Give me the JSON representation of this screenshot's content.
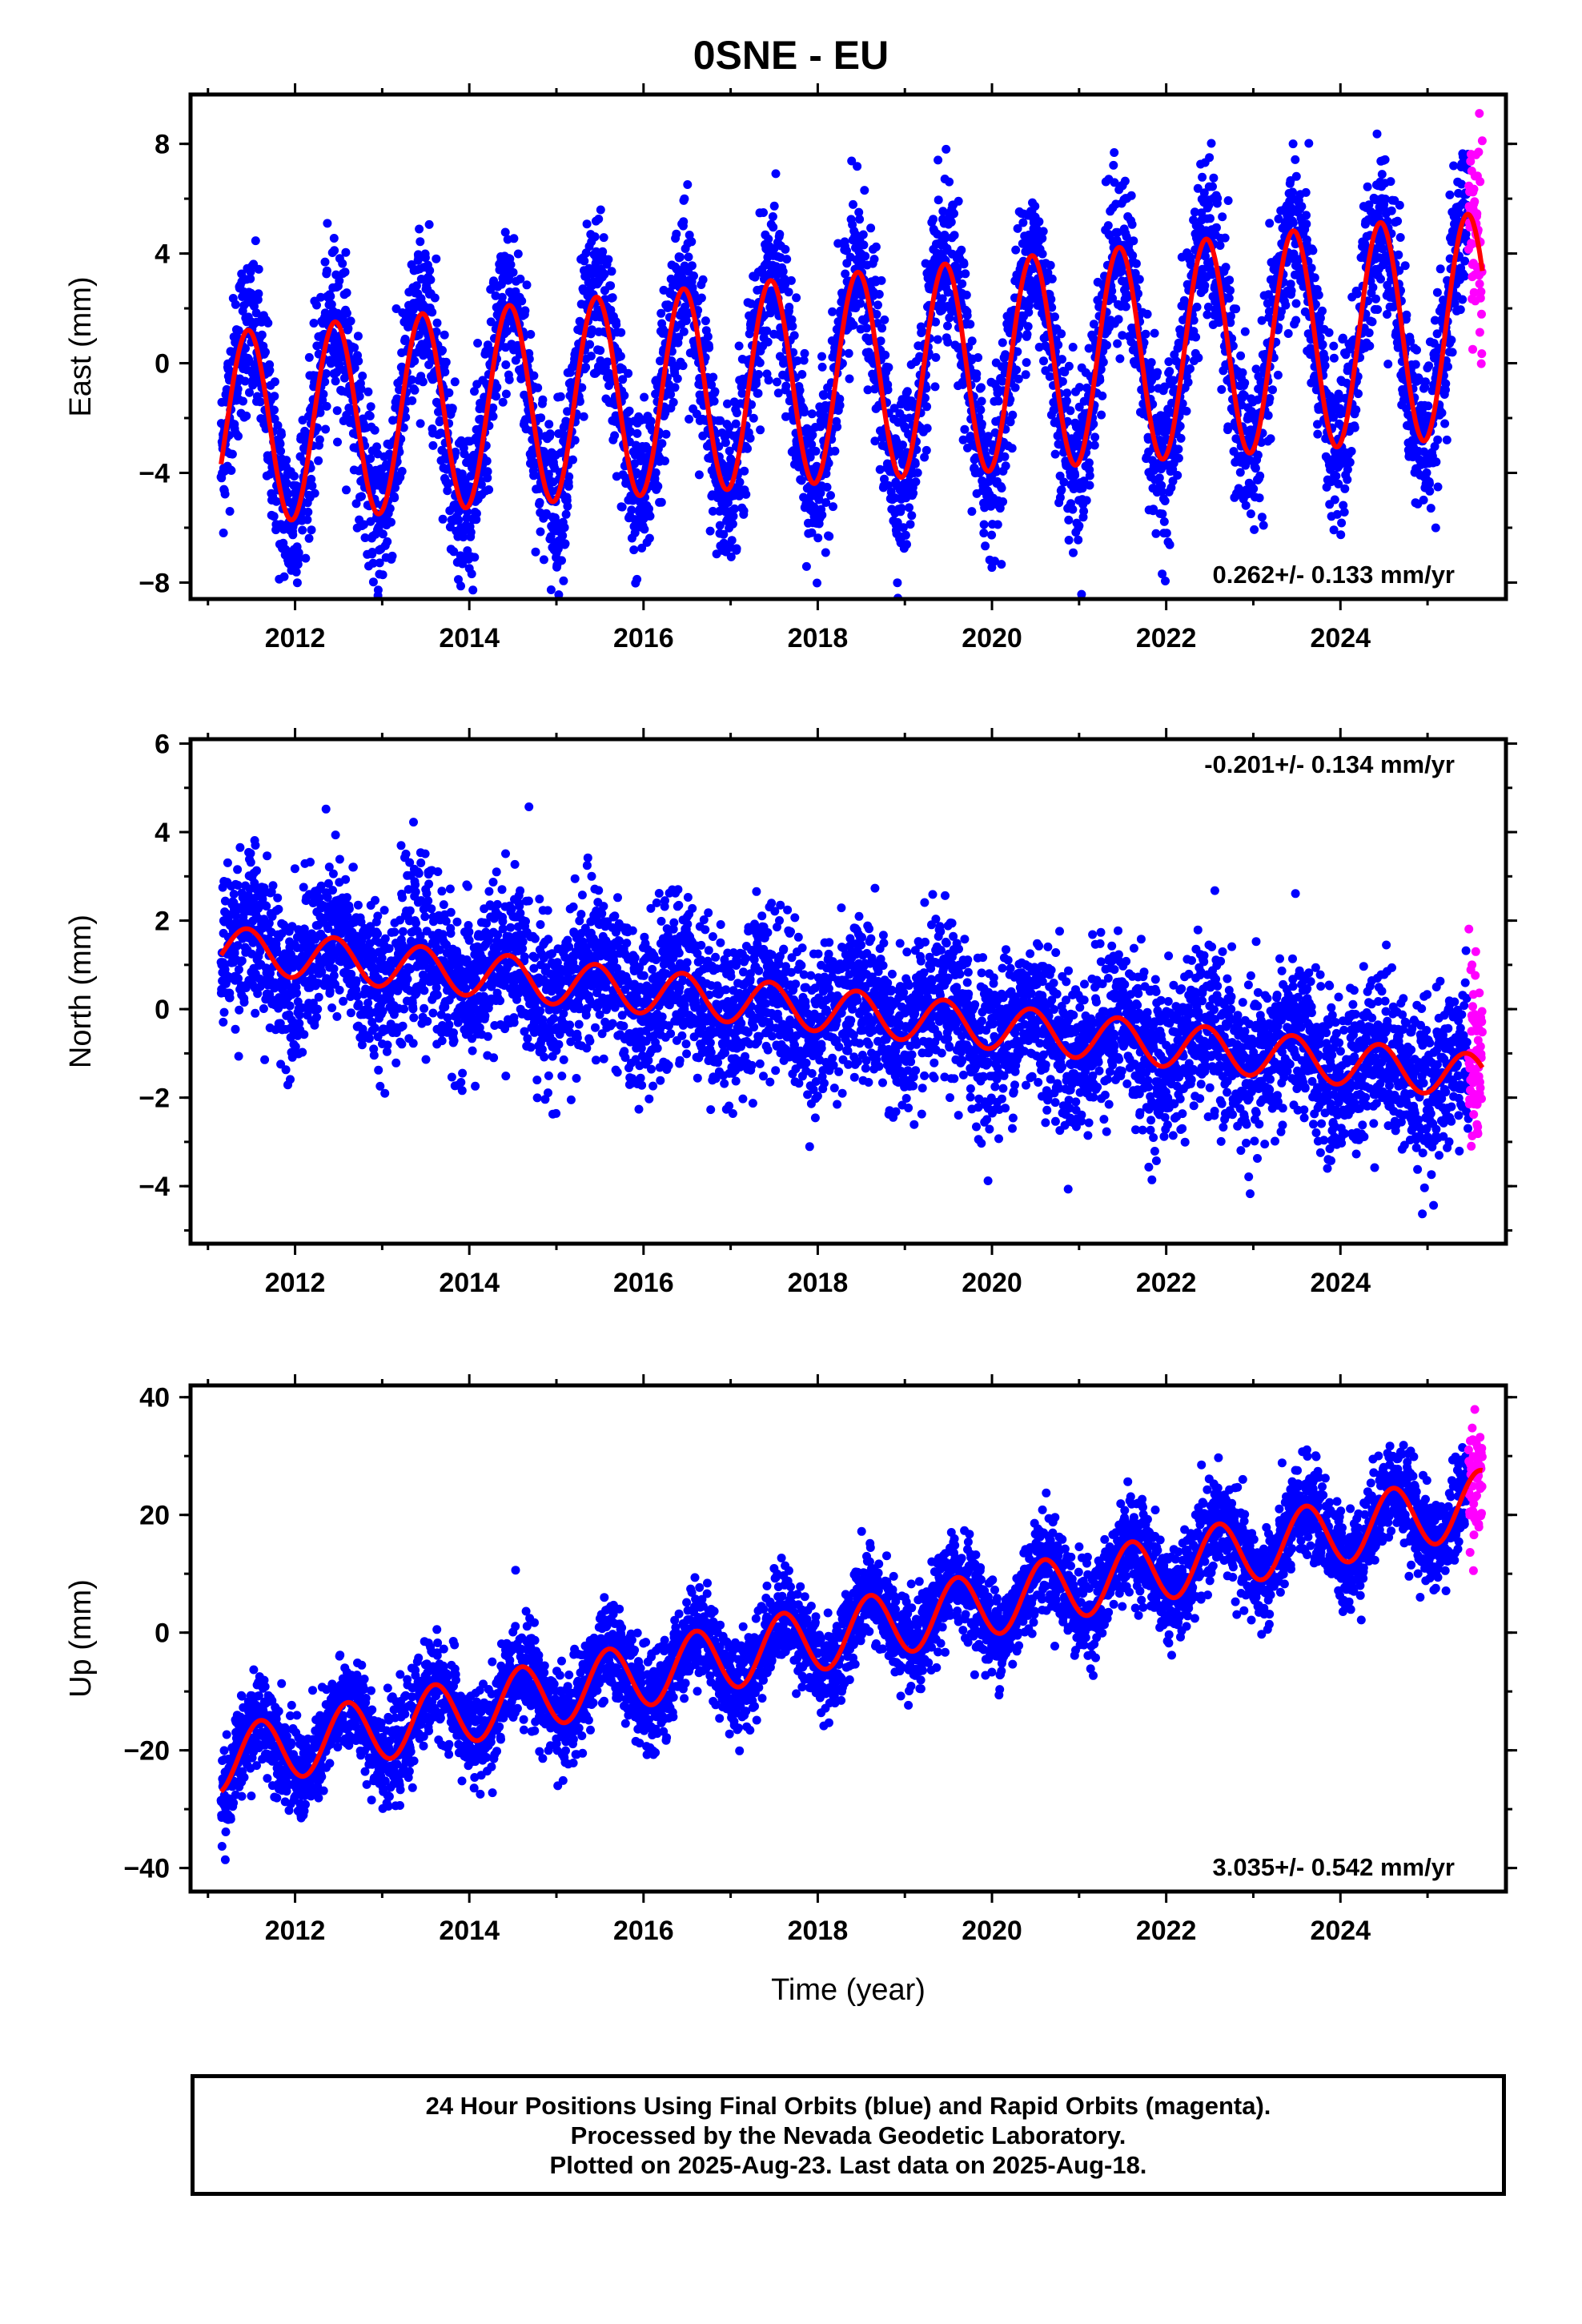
{
  "title": "0SNE - EU",
  "colors": {
    "final": "#0000ff",
    "rapid": "#ff00ff",
    "model": "#ff0000"
  },
  "footer": {
    "line1": "24 Hour Positions Using Final Orbits (blue) and Rapid Orbits (magenta).",
    "line2": "Processed by the Nevada Geodetic Laboratory.",
    "line3": "Plotted on 2025-Aug-23. Last data on 2025-Aug-18."
  },
  "chart_data": [
    {
      "type": "scatter",
      "ylabel": "East (mm)",
      "xlabel": "",
      "xlim": [
        2010.8,
        2025.9
      ],
      "ylim": [
        -8.6,
        9.8
      ],
      "xticks": [
        2012,
        2014,
        2016,
        2018,
        2020,
        2022,
        2024
      ],
      "yticks": [
        -8,
        -4,
        0,
        4,
        8
      ],
      "rate_text": "0.262+/- 0.133 mm/yr",
      "rate_position": "bottom-right",
      "model": {
        "offset_at_2018": -0.6,
        "trend_mm_per_yr": 0.262,
        "annual_amplitude_mm": 3.5,
        "annual_peak_phase": 0.46,
        "annual_amplitude_growth_per_yr": 0.04
      },
      "scatter_mm": 1.5,
      "data_start": 2011.15,
      "rapid_start": 2025.47,
      "data_end": 2025.63
    },
    {
      "type": "scatter",
      "ylabel": "North (mm)",
      "xlabel": "",
      "xlim": [
        2010.8,
        2025.9
      ],
      "ylim": [
        -5.3,
        6.1
      ],
      "xticks": [
        2012,
        2014,
        2016,
        2018,
        2020,
        2022,
        2024
      ],
      "yticks": [
        -4,
        -2,
        0,
        2,
        4,
        6
      ],
      "rate_text": "-0.201+/- 0.134 mm/yr",
      "rate_position": "top-right",
      "model": {
        "offset_at_2018": 0.0,
        "trend_mm_per_yr": -0.201,
        "annual_amplitude_mm": 0.5,
        "annual_peak_phase": 0.45,
        "annual_amplitude_growth_per_yr": 0.0
      },
      "scatter_mm": 0.9,
      "data_start": 2011.15,
      "rapid_start": 2025.47,
      "data_end": 2025.63
    },
    {
      "type": "scatter",
      "ylabel": "Up (mm)",
      "xlabel": "Time (year)",
      "xlim": [
        2010.8,
        2025.9
      ],
      "ylim": [
        -44,
        42
      ],
      "xticks": [
        2012,
        2014,
        2016,
        2018,
        2020,
        2022,
        2024
      ],
      "yticks": [
        -40,
        -20,
        0,
        20,
        40
      ],
      "rate_text": "3.035+/- 0.542 mm/yr",
      "rate_position": "bottom-right",
      "model": {
        "offset_at_2018": -1.0,
        "trend_mm_per_yr": 3.035,
        "annual_amplitude_mm": 5.5,
        "annual_peak_phase": 0.6,
        "annual_amplitude_growth_per_yr": 0.0
      },
      "scatter_mm": 4.0,
      "data_start": 2011.15,
      "rapid_start": 2025.47,
      "data_end": 2025.63
    }
  ]
}
